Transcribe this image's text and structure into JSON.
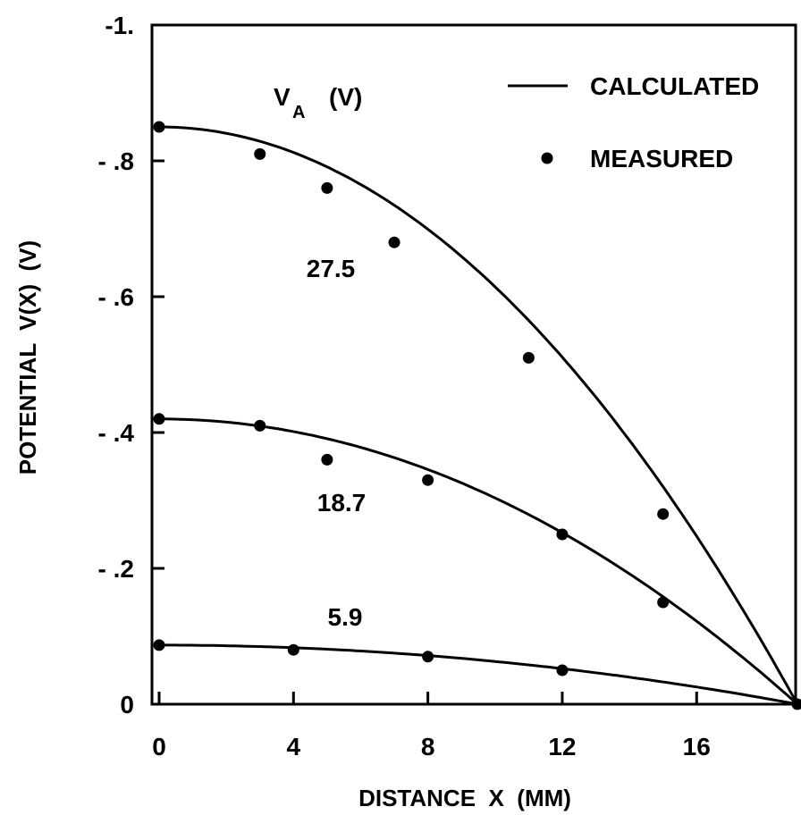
{
  "chart_data": {
    "type": "line",
    "xlabel": "DISTANCE  X  (MM)",
    "ylabel": "POTENTIAL  V(X)  (V)",
    "xlim": [
      0,
      19
    ],
    "ylim": [
      0,
      1.0
    ],
    "x_ticks": [
      0,
      4,
      8,
      12,
      16
    ],
    "x_tick_labels": [
      "0",
      "4",
      "8",
      "12",
      "16"
    ],
    "y_ticks": [
      0,
      0.2,
      0.4,
      0.6,
      0.8,
      1.0
    ],
    "y_tick_labels": [
      "0",
      "- .2",
      "- .4",
      "- .6",
      "- .8",
      "-1."
    ],
    "legend": {
      "placement": "top-right",
      "entries": [
        {
          "label": "CALCULATED",
          "marker": "line"
        },
        {
          "label": "MEASURED",
          "marker": "dot"
        }
      ]
    },
    "series_header": "V",
    "series_header_sub": "A",
    "series_header_unit": "(V)",
    "series": [
      {
        "label": "27.5",
        "calculated": {
          "V0": 0.85,
          "L": 19
        },
        "measured": [
          [
            0,
            0.85
          ],
          [
            3,
            0.81
          ],
          [
            5,
            0.76
          ],
          [
            7,
            0.68
          ],
          [
            11,
            0.51
          ],
          [
            15,
            0.28
          ],
          [
            19,
            0.0
          ]
        ]
      },
      {
        "label": "18.7",
        "calculated": {
          "V0": 0.42,
          "L": 19
        },
        "measured": [
          [
            0,
            0.42
          ],
          [
            3,
            0.41
          ],
          [
            5,
            0.36
          ],
          [
            8,
            0.33
          ],
          [
            12,
            0.25
          ],
          [
            15,
            0.15
          ]
        ]
      },
      {
        "label": "5.9",
        "calculated": {
          "V0": 0.087,
          "L": 19
        },
        "measured": [
          [
            0,
            0.087
          ],
          [
            4,
            0.08
          ],
          [
            8,
            0.07
          ],
          [
            12,
            0.05
          ]
        ]
      }
    ]
  }
}
